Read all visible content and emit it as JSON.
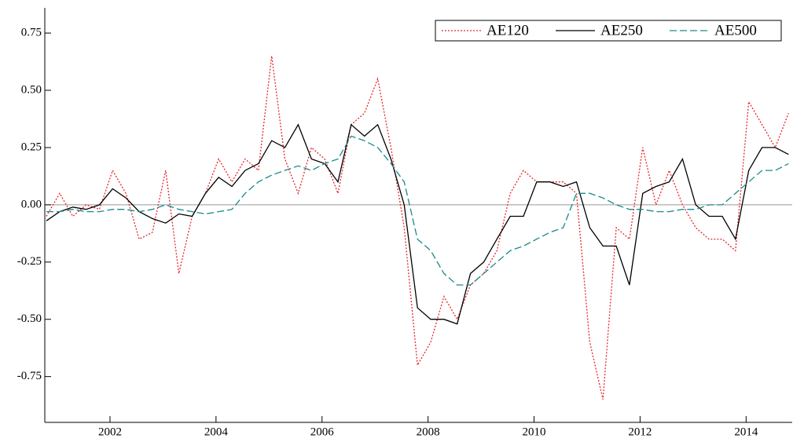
{
  "chart_data": {
    "type": "line",
    "x": [
      2000.8,
      2001.05,
      2001.3,
      2001.55,
      2001.8,
      2002.05,
      2002.3,
      2002.55,
      2002.8,
      2003.05,
      2003.3,
      2003.55,
      2003.8,
      2004.05,
      2004.3,
      2004.55,
      2004.8,
      2005.05,
      2005.3,
      2005.55,
      2005.8,
      2006.05,
      2006.3,
      2006.55,
      2006.8,
      2007.05,
      2007.3,
      2007.55,
      2007.8,
      2008.05,
      2008.3,
      2008.55,
      2008.8,
      2009.05,
      2009.3,
      2009.55,
      2009.8,
      2010.05,
      2010.3,
      2010.55,
      2010.8,
      2011.05,
      2011.3,
      2011.55,
      2011.8,
      2012.05,
      2012.3,
      2012.55,
      2012.8,
      2013.05,
      2013.3,
      2013.55,
      2013.8,
      2014.05,
      2014.3,
      2014.55,
      2014.8
    ],
    "series": [
      {
        "name": "AE120",
        "color": "#e8262a",
        "style": "dotted",
        "values": [
          -0.05,
          0.05,
          -0.05,
          0.0,
          -0.02,
          0.15,
          0.05,
          -0.15,
          -0.12,
          0.15,
          -0.3,
          -0.05,
          0.05,
          0.2,
          0.1,
          0.2,
          0.15,
          0.65,
          0.2,
          0.05,
          0.25,
          0.2,
          0.05,
          0.35,
          0.4,
          0.55,
          0.25,
          -0.1,
          -0.7,
          -0.6,
          -0.4,
          -0.5,
          -0.35,
          -0.3,
          -0.2,
          0.05,
          0.15,
          0.1,
          0.1,
          0.1,
          0.05,
          -0.6,
          -0.85,
          -0.1,
          -0.15,
          0.25,
          0.0,
          0.15,
          0.0,
          -0.1,
          -0.15,
          -0.15,
          -0.2,
          0.45,
          0.35,
          0.25,
          0.4
        ]
      },
      {
        "name": "AE250",
        "color": "#000000",
        "style": "solid",
        "values": [
          -0.07,
          -0.03,
          -0.01,
          -0.02,
          0.0,
          0.07,
          0.03,
          -0.03,
          -0.06,
          -0.08,
          -0.04,
          -0.05,
          0.05,
          0.12,
          0.08,
          0.15,
          0.18,
          0.28,
          0.25,
          0.35,
          0.2,
          0.18,
          0.1,
          0.35,
          0.3,
          0.35,
          0.2,
          0.0,
          -0.45,
          -0.5,
          -0.5,
          -0.52,
          -0.3,
          -0.25,
          -0.15,
          -0.05,
          -0.05,
          0.1,
          0.1,
          0.08,
          0.1,
          -0.1,
          -0.18,
          -0.18,
          -0.35,
          0.05,
          0.08,
          0.1,
          0.2,
          0.0,
          -0.05,
          -0.05,
          -0.15,
          0.15,
          0.25,
          0.25,
          0.22
        ]
      },
      {
        "name": "AE500",
        "color": "#1a8a8a",
        "style": "dashed",
        "values": [
          -0.03,
          -0.03,
          -0.02,
          -0.03,
          -0.03,
          -0.02,
          -0.02,
          -0.03,
          -0.02,
          0.0,
          -0.02,
          -0.03,
          -0.04,
          -0.03,
          -0.02,
          0.05,
          0.1,
          0.13,
          0.15,
          0.17,
          0.15,
          0.18,
          0.2,
          0.3,
          0.28,
          0.25,
          0.18,
          0.1,
          -0.15,
          -0.2,
          -0.3,
          -0.35,
          -0.35,
          -0.3,
          -0.25,
          -0.2,
          -0.18,
          -0.15,
          -0.12,
          -0.1,
          0.05,
          0.05,
          0.03,
          0.0,
          -0.02,
          -0.02,
          -0.03,
          -0.03,
          -0.02,
          -0.02,
          0.0,
          0.0,
          0.05,
          0.1,
          0.15,
          0.15,
          0.18
        ]
      }
    ],
    "xlim": [
      2000.77,
      2014.87
    ],
    "xticks": [
      2002,
      2004,
      2006,
      2008,
      2010,
      2012,
      2014
    ],
    "ylim": [
      -0.95,
      0.86
    ],
    "yticks": [
      {
        "value": 0.75,
        "label": "0.75"
      },
      {
        "value": 0.5,
        "label": "0.50"
      },
      {
        "value": 0.25,
        "label": "0.25"
      },
      {
        "value": 0,
        "label": "0.00"
      },
      {
        "value": -0.25,
        "label": "-0.25"
      },
      {
        "value": -0.5,
        "label": "-0.50"
      },
      {
        "value": -0.75,
        "label": "-0.75"
      }
    ],
    "zero_line": true,
    "legend": "top-right"
  }
}
